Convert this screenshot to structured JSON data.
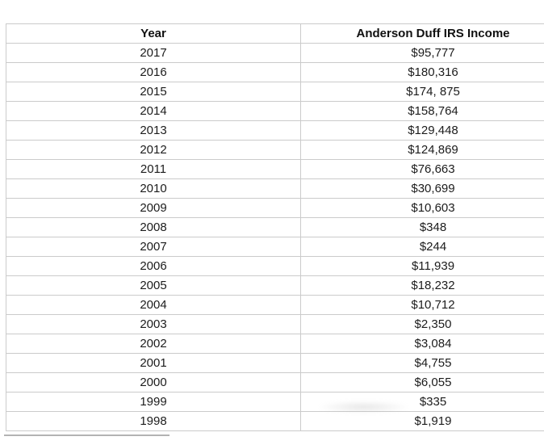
{
  "table": {
    "columns": [
      "Year",
      "Anderson Duff IRS Income"
    ],
    "rows": [
      {
        "year": "2017",
        "income": "$95,777"
      },
      {
        "year": "2016",
        "income": "$180,316"
      },
      {
        "year": "2015",
        "income": "$174, 875"
      },
      {
        "year": "2014",
        "income": "$158,764"
      },
      {
        "year": "2013",
        "income": "$129,448"
      },
      {
        "year": "2012",
        "income": "$124,869"
      },
      {
        "year": "2011",
        "income": "$76,663"
      },
      {
        "year": "2010",
        "income": "$30,699"
      },
      {
        "year": "2009",
        "income": "$10,603"
      },
      {
        "year": "2008",
        "income": "$348"
      },
      {
        "year": "2007",
        "income": "$244"
      },
      {
        "year": "2006",
        "income": "$11,939"
      },
      {
        "year": "2005",
        "income": "$18,232"
      },
      {
        "year": "2004",
        "income": "$10,712"
      },
      {
        "year": "2003",
        "income": "$2,350"
      },
      {
        "year": "2002",
        "income": "$3,084"
      },
      {
        "year": "2001",
        "income": "$4,755"
      },
      {
        "year": "2000",
        "income": "$6,055"
      },
      {
        "year": "1999",
        "income": "$335"
      },
      {
        "year": "1998",
        "income": "$1,919"
      }
    ]
  },
  "colors": {
    "background": "#ffffff",
    "border": "#cbcbcb",
    "text": "#1c1c1c",
    "header_text": "#111111"
  }
}
